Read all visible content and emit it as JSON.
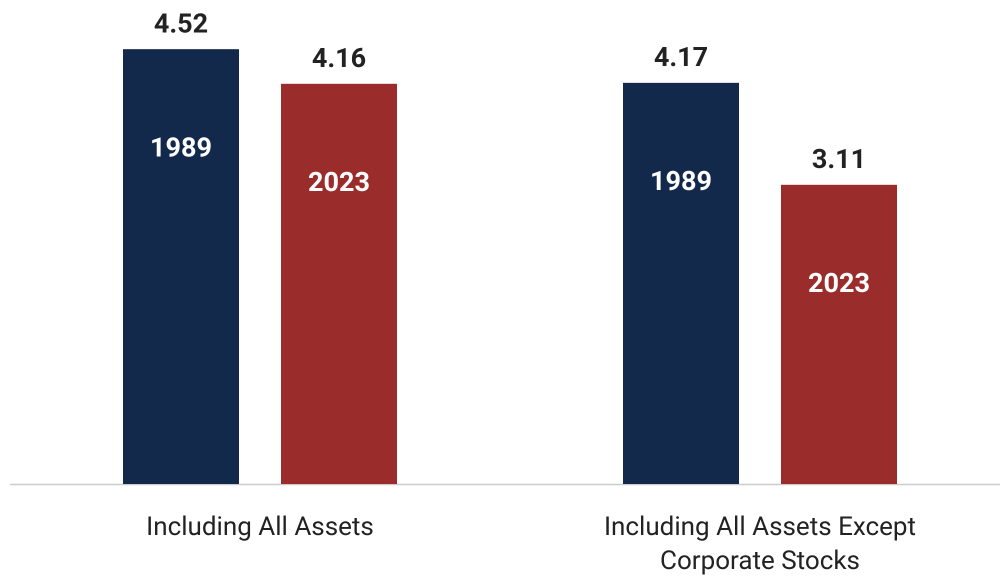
{
  "chart_data": {
    "type": "bar",
    "categories": [
      "Including All Assets",
      "Including All Assets Except Corporate Stocks"
    ],
    "series": [
      {
        "name": "1989",
        "color": "#13294b",
        "values": [
          4.52,
          4.17
        ]
      },
      {
        "name": "2023",
        "color": "#9b2c2c",
        "values": [
          4.16,
          3.11
        ]
      }
    ],
    "ylim": [
      0,
      5
    ]
  }
}
